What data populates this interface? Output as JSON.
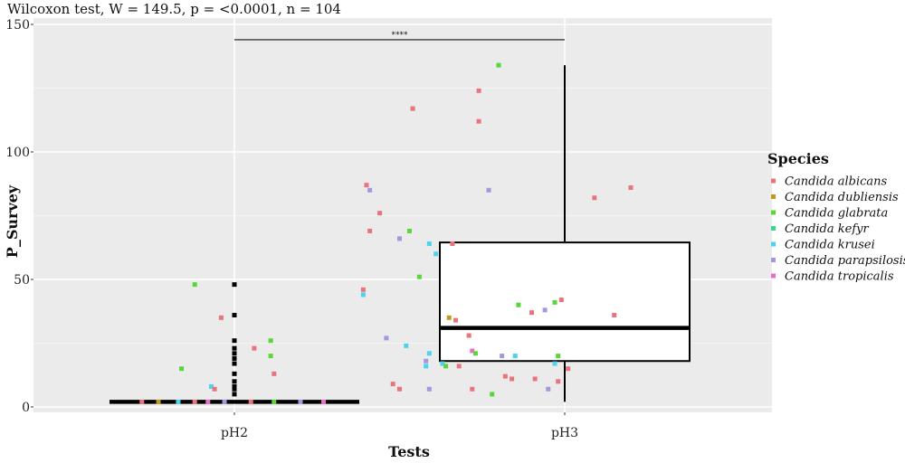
{
  "chart_data": {
    "type": "box",
    "subtitle": "Wilcoxon test, W = 149.5,   p = <0.0001, n = 104",
    "xlabel": "Tests",
    "ylabel": "P_Survey",
    "categories": [
      "pH2",
      "pH3"
    ],
    "ylim": [
      -1,
      150
    ],
    "yticks": [
      0,
      50,
      100,
      150
    ],
    "grid": true,
    "legend_position": "right",
    "significance": {
      "between": [
        "pH2",
        "pH3"
      ],
      "y": 144,
      "label": "****"
    },
    "legend": {
      "title": "Species",
      "entries": [
        {
          "name": "Candida albicans",
          "color": "#e8747c"
        },
        {
          "name": "Candida dubliensis",
          "color": "#c09a1e"
        },
        {
          "name": "Candida glabrata",
          "color": "#58d63a"
        },
        {
          "name": "Candida kefyr",
          "color": "#38d888"
        },
        {
          "name": "Candida krusei",
          "color": "#4dd3ee"
        },
        {
          "name": "Candida parapsilosis",
          "color": "#a497dd"
        },
        {
          "name": "Candida tropicalis",
          "color": "#e86fc8"
        }
      ]
    },
    "boxes": [
      {
        "category": "pH2",
        "whisker_low": 2,
        "q1": 2,
        "median": 2,
        "q3": 2,
        "whisker_high": 2,
        "outliers": [
          5,
          7,
          8,
          10,
          13,
          17,
          19,
          21,
          23,
          26,
          36,
          48
        ]
      },
      {
        "category": "pH3",
        "whisker_low": 2,
        "q1": 18,
        "median": 31,
        "q3": 64.5,
        "whisker_high": 134,
        "outliers": []
      }
    ],
    "points": [
      {
        "x": 0.72,
        "y": 2,
        "species": "Candida albicans"
      },
      {
        "x": 0.77,
        "y": 2,
        "species": "Candida dubliensis"
      },
      {
        "x": 0.83,
        "y": 2,
        "species": "Candida krusei"
      },
      {
        "x": 0.88,
        "y": 2,
        "species": "Candida albicans"
      },
      {
        "x": 0.92,
        "y": 2,
        "species": "Candida tropicalis"
      },
      {
        "x": 0.97,
        "y": 2,
        "species": "Candida parapsilosis"
      },
      {
        "x": 1.05,
        "y": 2,
        "species": "Candida albicans"
      },
      {
        "x": 1.12,
        "y": 2,
        "species": "Candida glabrata"
      },
      {
        "x": 1.2,
        "y": 2,
        "species": "Candida parapsilosis"
      },
      {
        "x": 1.27,
        "y": 2,
        "species": "Candida tropicalis"
      },
      {
        "x": 0.88,
        "y": 48,
        "species": "Candida glabrata"
      },
      {
        "x": 0.96,
        "y": 35,
        "species": "Candida albicans"
      },
      {
        "x": 0.84,
        "y": 15,
        "species": "Candida glabrata"
      },
      {
        "x": 0.93,
        "y": 8,
        "species": "Candida krusei"
      },
      {
        "x": 0.94,
        "y": 7,
        "species": "Candida albicans"
      },
      {
        "x": 1.06,
        "y": 23,
        "species": "Candida albicans"
      },
      {
        "x": 1.12,
        "y": 13,
        "species": "Candida albicans"
      },
      {
        "x": 1.11,
        "y": 26,
        "species": "Candida glabrata"
      },
      {
        "x": 1.11,
        "y": 20,
        "species": "Candida glabrata"
      },
      {
        "x": 1.8,
        "y": 134,
        "species": "Candida glabrata"
      },
      {
        "x": 1.74,
        "y": 124,
        "species": "Candida albicans"
      },
      {
        "x": 1.54,
        "y": 117,
        "species": "Candida albicans"
      },
      {
        "x": 1.74,
        "y": 112,
        "species": "Candida albicans"
      },
      {
        "x": 1.4,
        "y": 87,
        "species": "Candida albicans"
      },
      {
        "x": 1.41,
        "y": 85,
        "species": "Candida parapsilosis"
      },
      {
        "x": 1.77,
        "y": 85,
        "species": "Candida parapsilosis"
      },
      {
        "x": 2.2,
        "y": 86,
        "species": "Candida albicans"
      },
      {
        "x": 2.09,
        "y": 82,
        "species": "Candida albicans"
      },
      {
        "x": 1.44,
        "y": 76,
        "species": "Candida albicans"
      },
      {
        "x": 1.41,
        "y": 69,
        "species": "Candida albicans"
      },
      {
        "x": 1.53,
        "y": 69,
        "species": "Candida glabrata"
      },
      {
        "x": 1.5,
        "y": 66,
        "species": "Candida parapsilosis"
      },
      {
        "x": 1.59,
        "y": 64,
        "species": "Candida krusei"
      },
      {
        "x": 1.66,
        "y": 64,
        "species": "Candida albicans"
      },
      {
        "x": 1.61,
        "y": 60,
        "species": "Candida krusei"
      },
      {
        "x": 1.56,
        "y": 51,
        "species": "Candida glabrata"
      },
      {
        "x": 1.39,
        "y": 46,
        "species": "Candida albicans"
      },
      {
        "x": 1.39,
        "y": 44,
        "species": "Candida krusei"
      },
      {
        "x": 1.99,
        "y": 42,
        "species": "Candida albicans"
      },
      {
        "x": 1.97,
        "y": 41,
        "species": "Candida glabrata"
      },
      {
        "x": 1.86,
        "y": 40,
        "species": "Candida glabrata"
      },
      {
        "x": 1.94,
        "y": 38,
        "species": "Candida parapsilosis"
      },
      {
        "x": 1.9,
        "y": 37,
        "species": "Candida albicans"
      },
      {
        "x": 2.15,
        "y": 36,
        "species": "Candida albicans"
      },
      {
        "x": 1.65,
        "y": 35,
        "species": "Candida dubliensis"
      },
      {
        "x": 1.67,
        "y": 34,
        "species": "Candida albicans"
      },
      {
        "x": 1.71,
        "y": 28,
        "species": "Candida albicans"
      },
      {
        "x": 1.46,
        "y": 27,
        "species": "Candida parapsilosis"
      },
      {
        "x": 1.52,
        "y": 24,
        "species": "Candida krusei"
      },
      {
        "x": 1.72,
        "y": 22,
        "species": "Candida tropicalis"
      },
      {
        "x": 1.73,
        "y": 21,
        "species": "Candida glabrata"
      },
      {
        "x": 1.59,
        "y": 21,
        "species": "Candida krusei"
      },
      {
        "x": 1.81,
        "y": 20,
        "species": "Candida parapsilosis"
      },
      {
        "x": 1.85,
        "y": 20,
        "species": "Candida krusei"
      },
      {
        "x": 1.98,
        "y": 20,
        "species": "Candida glabrata"
      },
      {
        "x": 1.58,
        "y": 18,
        "species": "Candida parapsilosis"
      },
      {
        "x": 1.63,
        "y": 17,
        "species": "Candida krusei"
      },
      {
        "x": 1.58,
        "y": 16,
        "species": "Candida krusei"
      },
      {
        "x": 1.64,
        "y": 16,
        "species": "Candida glabrata"
      },
      {
        "x": 1.68,
        "y": 16,
        "species": "Candida albicans"
      },
      {
        "x": 1.97,
        "y": 17,
        "species": "Candida krusei"
      },
      {
        "x": 2.01,
        "y": 15,
        "species": "Candida albicans"
      },
      {
        "x": 1.82,
        "y": 12,
        "species": "Candida albicans"
      },
      {
        "x": 1.84,
        "y": 11,
        "species": "Candida albicans"
      },
      {
        "x": 1.91,
        "y": 11,
        "species": "Candida albicans"
      },
      {
        "x": 1.98,
        "y": 10,
        "species": "Candida albicans"
      },
      {
        "x": 1.48,
        "y": 9,
        "species": "Candida albicans"
      },
      {
        "x": 1.5,
        "y": 7,
        "species": "Candida albicans"
      },
      {
        "x": 1.59,
        "y": 7,
        "species": "Candida parapsilosis"
      },
      {
        "x": 1.72,
        "y": 7,
        "species": "Candida albicans"
      },
      {
        "x": 1.95,
        "y": 7,
        "species": "Candida parapsilosis"
      },
      {
        "x": 1.78,
        "y": 5,
        "species": "Candida glabrata"
      }
    ]
  }
}
